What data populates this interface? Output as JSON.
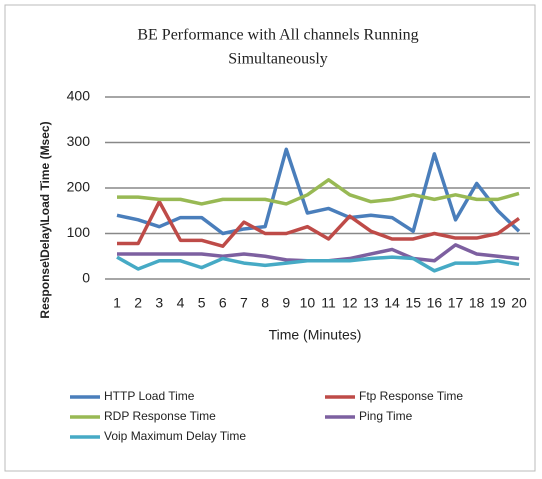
{
  "chart_data": {
    "type": "line",
    "title_lines": [
      "BE Performance with All channels Running",
      "Simultaneously"
    ],
    "x_label": "Time (Minutes)",
    "y_label": "Response\\Delay\\Load Time (Msec)",
    "categories": [
      "1",
      "2",
      "3",
      "4",
      "5",
      "6",
      "7",
      "8",
      "9",
      "10",
      "11",
      "12",
      "13",
      "14",
      "15",
      "16",
      "17",
      "18",
      "19",
      "20"
    ],
    "series": [
      {
        "name": "HTTP Load Time",
        "color": "#4a7ebb",
        "values": [
          140,
          130,
          115,
          135,
          135,
          100,
          110,
          115,
          285,
          145,
          155,
          135,
          140,
          135,
          105,
          275,
          130,
          210,
          150,
          105
        ]
      },
      {
        "name": "Ftp Response Time",
        "color": "#be4b48",
        "values": [
          78,
          78,
          170,
          85,
          85,
          72,
          125,
          100,
          100,
          115,
          88,
          138,
          105,
          88,
          88,
          100,
          90,
          90,
          100,
          133
        ]
      },
      {
        "name": "RDP Response Time",
        "color": "#98b954",
        "values": [
          180,
          180,
          175,
          175,
          165,
          175,
          175,
          175,
          165,
          185,
          218,
          185,
          170,
          175,
          185,
          175,
          185,
          175,
          175,
          188
        ]
      },
      {
        "name": "Ping Time",
        "color": "#7d60a0",
        "values": [
          55,
          55,
          55,
          55,
          55,
          50,
          55,
          50,
          42,
          40,
          40,
          45,
          55,
          65,
          45,
          40,
          75,
          55,
          50,
          45
        ]
      },
      {
        "name": "Voip Maximum Delay Time",
        "color": "#46aac5",
        "values": [
          48,
          22,
          40,
          40,
          25,
          45,
          35,
          30,
          35,
          40,
          40,
          40,
          45,
          48,
          45,
          18,
          35,
          35,
          40,
          32
        ]
      }
    ],
    "ylim": [
      0,
      400
    ],
    "yticks": [
      0,
      100,
      200,
      300,
      400
    ],
    "grid": true
  }
}
